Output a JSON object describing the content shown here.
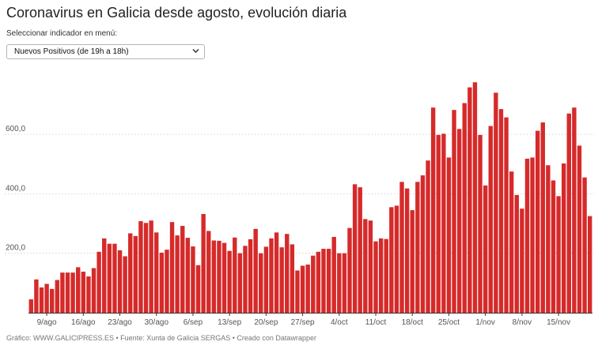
{
  "title": "Coronavirus en Galicia desde agosto, evolución diaria",
  "selector": {
    "label": "Seleccionar indicador en menú:",
    "value": "Nuevos Positivos (de 19h a 18h)"
  },
  "footer": "Gráfico: WWW.GALICIPRESS.ES • Fuente: Xunta de Galicia SERGAS • Creado con Datawrapper",
  "colors": {
    "bar": "#d62a2a",
    "grid": "#cccccc",
    "axis": "#333333"
  },
  "icons": {
    "dropdown": "chevron-down-icon"
  },
  "chart_data": {
    "type": "bar",
    "title": "",
    "xlabel": "",
    "ylabel": "",
    "ylim": [
      0,
      800
    ],
    "grid": true,
    "yticks": [
      "200,0",
      "400,0",
      "600,0"
    ],
    "ytick_values": [
      200,
      400,
      600
    ],
    "xticks": [
      {
        "label": "9/ago",
        "index": 3
      },
      {
        "label": "16/ago",
        "index": 10
      },
      {
        "label": "23/ago",
        "index": 17
      },
      {
        "label": "30/ago",
        "index": 24
      },
      {
        "label": "6/sep",
        "index": 31
      },
      {
        "label": "13/sep",
        "index": 38
      },
      {
        "label": "20/sep",
        "index": 45
      },
      {
        "label": "27/sep",
        "index": 52
      },
      {
        "label": "4/oct",
        "index": 59
      },
      {
        "label": "11/oct",
        "index": 66
      },
      {
        "label": "18/oct",
        "index": 73
      },
      {
        "label": "25/oct",
        "index": 80
      },
      {
        "label": "1/nov",
        "index": 87
      },
      {
        "label": "8/nov",
        "index": 94
      },
      {
        "label": "15/nov",
        "index": 101
      }
    ],
    "values": [
      45,
      112,
      85,
      97,
      80,
      110,
      135,
      135,
      135,
      153,
      138,
      122,
      150,
      205,
      250,
      232,
      232,
      210,
      190,
      267,
      258,
      308,
      302,
      310,
      270,
      202,
      212,
      305,
      260,
      292,
      252,
      223,
      160,
      332,
      275,
      243,
      242,
      235,
      208,
      253,
      200,
      225,
      247,
      282,
      200,
      222,
      250,
      270,
      220,
      265,
      230,
      142,
      158,
      162,
      192,
      205,
      215,
      215,
      255,
      200,
      200,
      285,
      432,
      422,
      315,
      310,
      240,
      250,
      248,
      355,
      360,
      440,
      418,
      345,
      440,
      462,
      512,
      690,
      598,
      602,
      522,
      682,
      618,
      705,
      758,
      775,
      598,
      428,
      628,
      740,
      685,
      657,
      475,
      396,
      350,
      518,
      522,
      612,
      640,
      496,
      445,
      392,
      502,
      670,
      690,
      562,
      455,
      325
    ]
  }
}
